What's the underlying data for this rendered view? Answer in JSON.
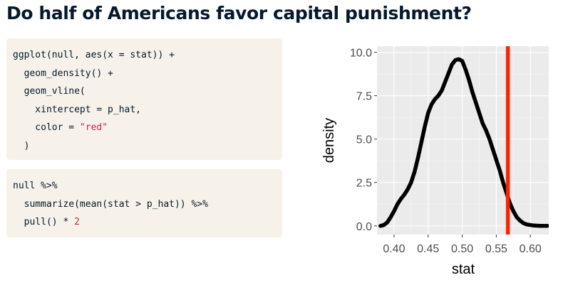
{
  "slide": {
    "title": "Do half of Americans favor capital punishment?"
  },
  "code_blocks": [
    {
      "lines": [
        [
          {
            "t": "ggplot(null, aes(x = stat)) +"
          }
        ],
        [
          {
            "t": "  geom_density() +"
          }
        ],
        [
          {
            "t": "  geom_vline("
          }
        ],
        [
          {
            "t": "    xintercept = p_hat,"
          }
        ],
        [
          {
            "t": "    color = "
          },
          {
            "t": "\"red\"",
            "k": "str"
          }
        ],
        [
          {
            "t": "  )"
          }
        ]
      ]
    },
    {
      "lines": [
        [
          {
            "t": "null %>%"
          }
        ],
        [
          {
            "t": "  summarize(mean(stat > p_hat)) %>%"
          }
        ],
        [
          {
            "t": "  pull() * "
          },
          {
            "t": "2",
            "k": "num"
          }
        ]
      ]
    }
  ],
  "chart_data": {
    "type": "line",
    "xlabel": "stat",
    "ylabel": "density",
    "xlim": [
      0.375,
      0.628
    ],
    "ylim": [
      -0.5,
      10.35
    ],
    "x_ticks": [
      0.4,
      0.45,
      0.5,
      0.55,
      0.6
    ],
    "x_tick_labels": [
      "0.40",
      "0.45",
      "0.50",
      "0.55",
      "0.60"
    ],
    "y_ticks": [
      0.0,
      2.5,
      5.0,
      7.5,
      10.0
    ],
    "y_tick_labels": [
      "0.0",
      "2.5",
      "5.0",
      "7.5",
      "10.0"
    ],
    "grid": true,
    "series": [
      {
        "color": "#000000",
        "x": [
          0.38,
          0.385,
          0.39,
          0.395,
          0.4,
          0.405,
          0.41,
          0.415,
          0.42,
          0.425,
          0.43,
          0.435,
          0.44,
          0.445,
          0.45,
          0.455,
          0.46,
          0.465,
          0.47,
          0.475,
          0.48,
          0.485,
          0.49,
          0.495,
          0.5,
          0.505,
          0.51,
          0.515,
          0.52,
          0.525,
          0.53,
          0.535,
          0.54,
          0.545,
          0.55,
          0.555,
          0.56,
          0.565,
          0.57,
          0.575,
          0.58,
          0.585,
          0.59,
          0.595,
          0.6,
          0.605,
          0.61,
          0.615,
          0.62,
          0.625
        ],
        "y": [
          0.0,
          0.05,
          0.2,
          0.5,
          0.85,
          1.25,
          1.55,
          1.8,
          2.1,
          2.5,
          3.1,
          3.9,
          4.8,
          5.7,
          6.5,
          7.0,
          7.3,
          7.5,
          7.8,
          8.3,
          8.8,
          9.3,
          9.55,
          9.6,
          9.5,
          9.0,
          8.4,
          7.7,
          7.1,
          6.5,
          5.9,
          5.5,
          5.0,
          4.4,
          3.8,
          3.2,
          2.5,
          1.9,
          1.3,
          0.85,
          0.5,
          0.3,
          0.15,
          0.08,
          0.05,
          0.02,
          0.01,
          0.0,
          0.0,
          0.0
        ]
      }
    ],
    "vline": {
      "x": 0.567,
      "color": "#ff2200"
    }
  }
}
